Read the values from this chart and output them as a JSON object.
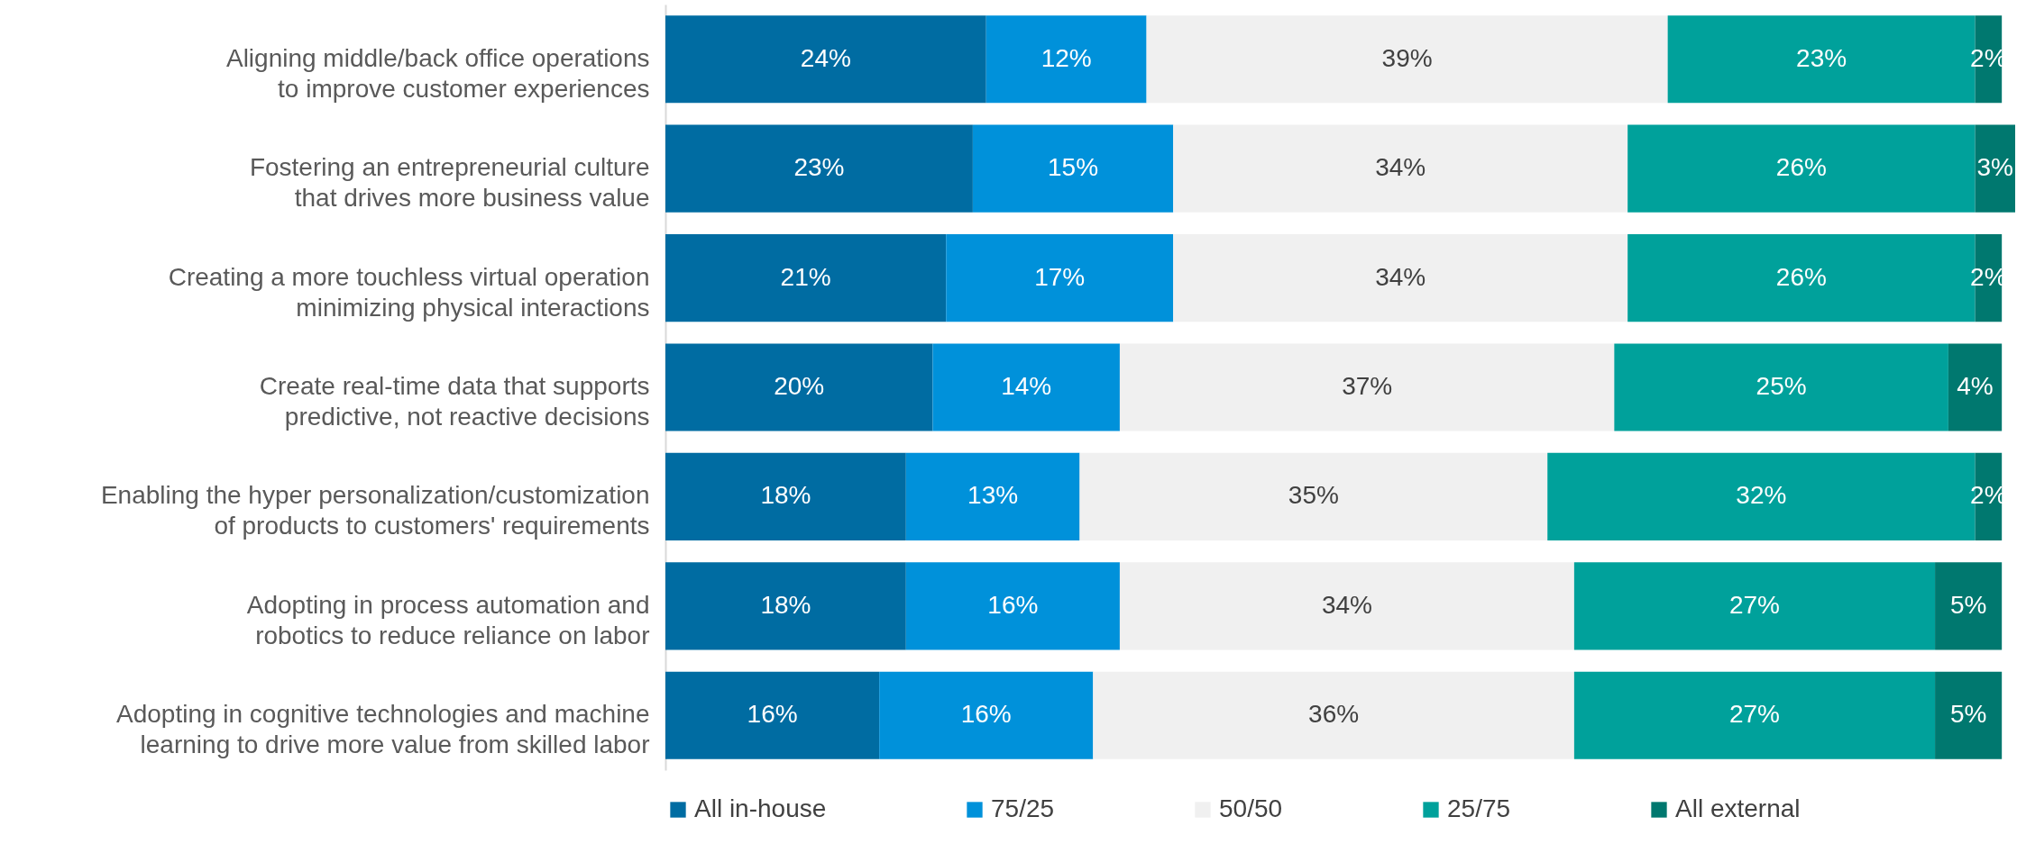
{
  "chart_data": {
    "type": "bar",
    "orientation": "horizontal",
    "stacked": true,
    "legend": "bottom",
    "categories": [
      "Aligning middle/back office operations to improve customer experiences",
      "Fostering an entrepreneurial culture that drives more business value",
      "Creating a more touchless virtual operation minimizing physical interactions",
      "Create real-time data that supports predictive, not reactive decisions",
      "Enabling the hyper personalization/customization of products to customers' requirements",
      "Adopting in process automation and robotics to reduce reliance on labor",
      "Adopting in cognitive technologies and machine learning to drive more value from skilled labor"
    ],
    "series": [
      {
        "name": "All in-house",
        "color": "#006ca2",
        "values": [
          24,
          23,
          21,
          20,
          18,
          18,
          16
        ],
        "value_labels": [
          "24%",
          "23%",
          "21%",
          "20%",
          "18%",
          "18%",
          "16%"
        ]
      },
      {
        "name": "75/25",
        "color": "#0091da",
        "values": [
          12,
          15,
          17,
          14,
          13,
          16,
          16
        ],
        "value_labels": [
          "12%",
          "15%",
          "17%",
          "14%",
          "13%",
          "16%",
          "16%"
        ]
      },
      {
        "name": "50/50",
        "color": "#f0f0f0",
        "values": [
          39,
          34,
          34,
          37,
          35,
          34,
          36
        ],
        "value_labels": [
          "39%",
          "34%",
          "34%",
          "37%",
          "35%",
          "34%",
          "36%"
        ]
      },
      {
        "name": "25/75",
        "color": "#00a19b",
        "values": [
          23,
          26,
          26,
          25,
          32,
          27,
          27
        ],
        "value_labels": [
          "23%",
          "26%",
          "26%",
          "25%",
          "32%",
          "27%",
          "27%"
        ]
      },
      {
        "name": "All external",
        "color": "#00786f",
        "values": [
          2,
          3,
          2,
          4,
          2,
          5,
          5
        ],
        "value_labels": [
          "2%",
          "3%",
          "2%",
          "4%",
          "2%",
          "5%",
          "5%"
        ]
      }
    ]
  }
}
